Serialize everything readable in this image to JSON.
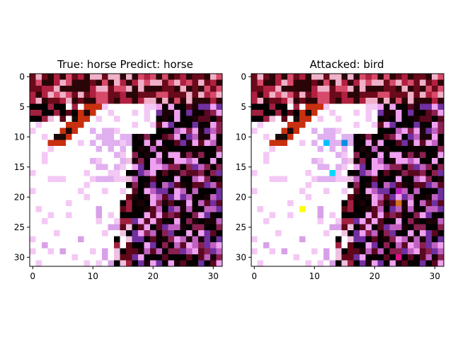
{
  "chart_data": [
    {
      "type": "heatmap",
      "title": "True: horse  Predict: horse",
      "image_size": [
        32,
        32
      ],
      "xticks": [
        "0",
        "10",
        "20",
        "30"
      ],
      "yticks": [
        "0",
        "5",
        "10",
        "15",
        "20",
        "25",
        "30"
      ],
      "xlim": [
        -0.5,
        31.5
      ],
      "ylim": [
        31.5,
        -0.5
      ],
      "perturbed_pixels": []
    },
    {
      "type": "heatmap",
      "title": "Attacked: bird",
      "image_size": [
        32,
        32
      ],
      "xticks": [
        "0",
        "10",
        "20",
        "30"
      ],
      "yticks": [
        "0",
        "5",
        "10",
        "15",
        "20",
        "25",
        "30"
      ],
      "xlim": [
        -0.5,
        31.5
      ],
      "ylim": [
        31.5,
        -0.5
      ],
      "perturbed_pixels": [
        {
          "x": 12,
          "y": 11,
          "color": "#00c0ff"
        },
        {
          "x": 15,
          "y": 11,
          "color": "#0090e0"
        },
        {
          "x": 13,
          "y": 16,
          "color": "#00d8ff"
        },
        {
          "x": 8,
          "y": 22,
          "color": "#ffff00"
        },
        {
          "x": 24,
          "y": 19,
          "color": "#c020c0"
        },
        {
          "x": 24,
          "y": 21,
          "color": "#d07020"
        },
        {
          "x": 24,
          "y": 30,
          "color": "#e0108a"
        }
      ]
    }
  ]
}
